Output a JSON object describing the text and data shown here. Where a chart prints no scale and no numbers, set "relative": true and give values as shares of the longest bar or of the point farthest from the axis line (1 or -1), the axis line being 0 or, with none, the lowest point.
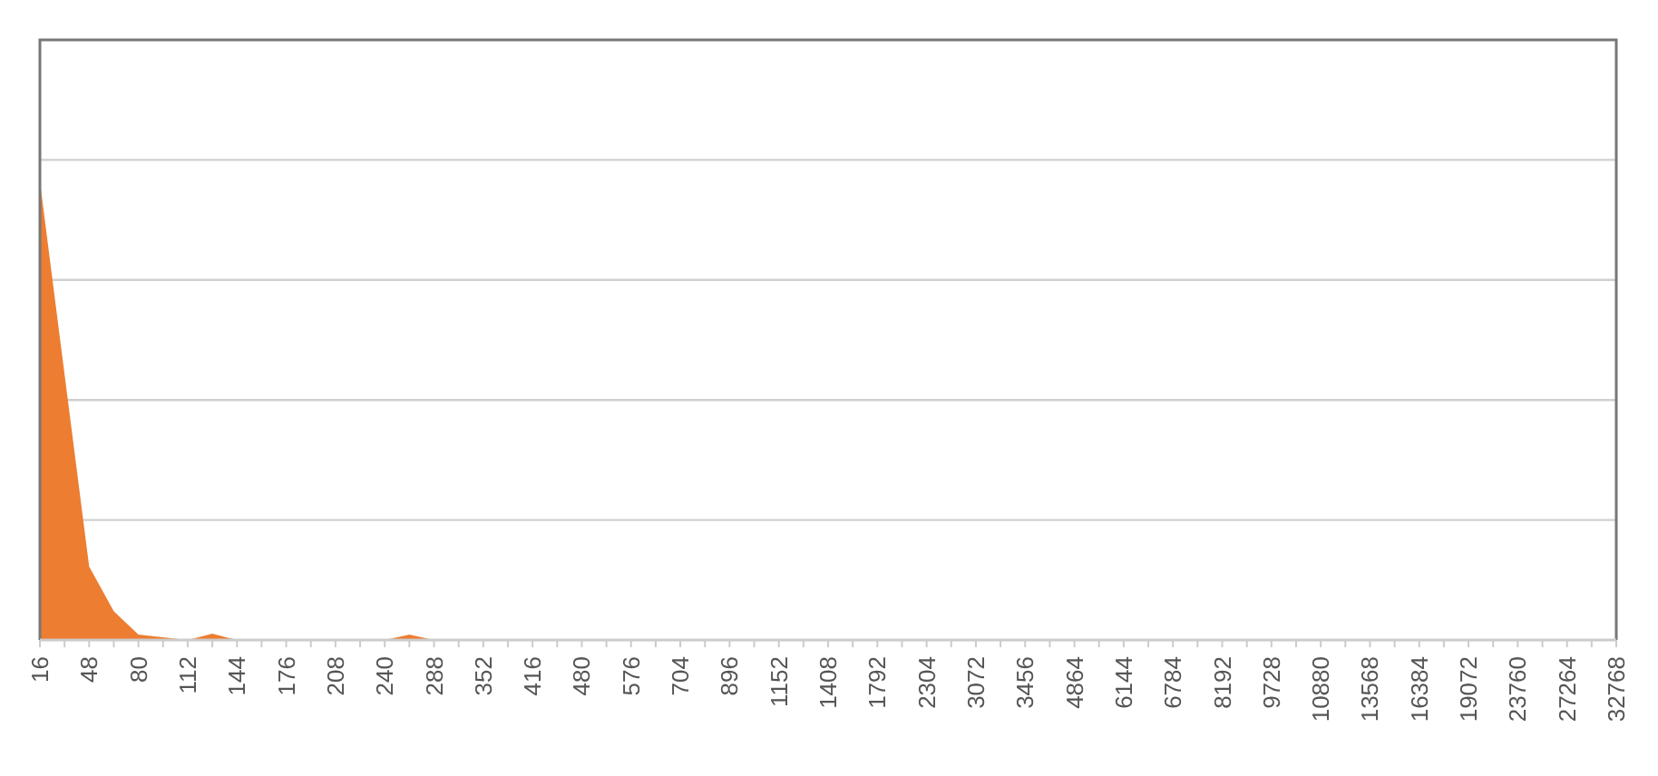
{
  "chart_data": {
    "type": "area",
    "relative": true,
    "grid": "y",
    "color": "#ed7d31",
    "categories": [
      "16",
      null,
      "48",
      null,
      "80",
      null,
      "112",
      null,
      "144",
      null,
      "176",
      null,
      "208",
      null,
      "240",
      null,
      "288",
      null,
      "352",
      null,
      "416",
      null,
      "480",
      null,
      "576",
      null,
      "704",
      null,
      "896",
      null,
      "1152",
      null,
      "1408",
      null,
      "1792",
      null,
      "2304",
      null,
      "3072",
      null,
      "3456",
      null,
      "4864",
      null,
      "6144",
      null,
      "6784",
      null,
      "8192",
      null,
      "9728",
      null,
      "10880",
      null,
      "13568",
      null,
      "16384",
      null,
      "19072",
      null,
      "23760",
      null,
      "27264",
      null,
      "32768"
    ],
    "values": [
      1,
      0.58,
      0.16,
      0.063,
      0.012,
      0.006,
      0,
      0.014,
      0,
      0,
      0,
      0,
      0,
      0,
      0,
      0.012,
      0,
      0,
      0,
      0,
      0,
      0,
      0,
      0,
      0,
      0,
      0,
      0,
      0,
      0,
      0,
      0,
      0,
      0,
      0,
      0,
      0,
      0,
      0,
      0,
      0,
      0,
      0,
      0,
      0,
      0,
      0,
      0,
      0,
      0,
      0,
      0,
      0,
      0,
      0,
      0,
      0,
      0,
      0,
      0,
      0,
      0,
      0,
      0,
      0
    ]
  }
}
